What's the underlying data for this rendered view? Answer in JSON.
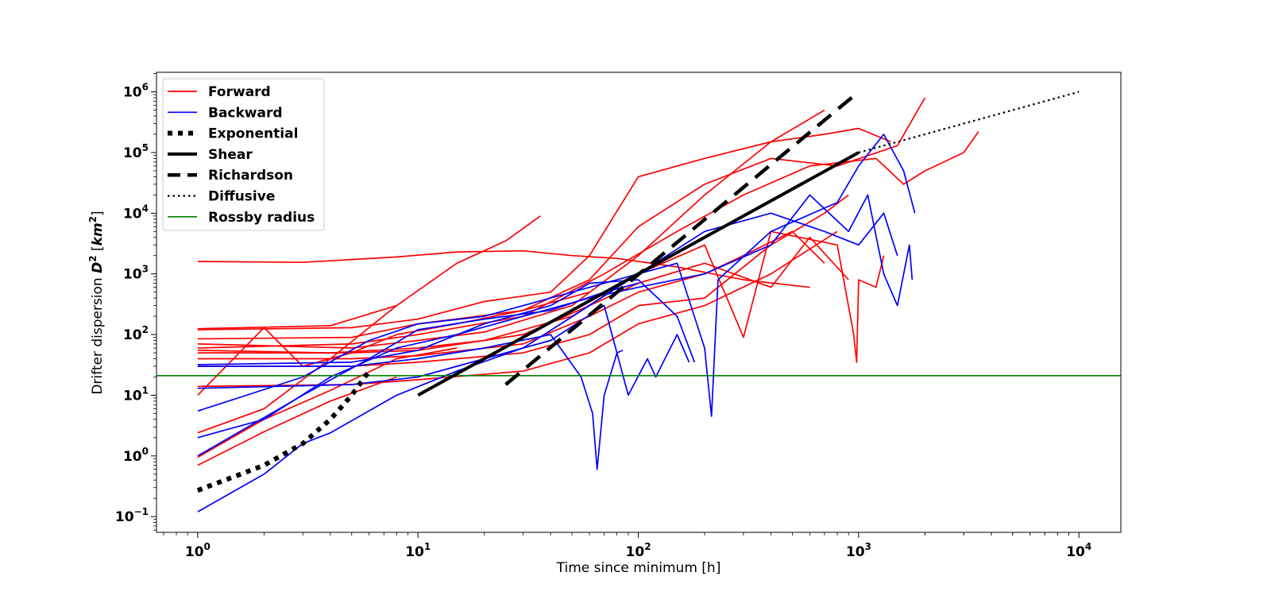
{
  "chart_data": {
    "type": "line",
    "title": "",
    "xlabel": "Time since minimum [h]",
    "ylabel_prefix": "Drifter dispersion ",
    "ylabel_symbol": "D",
    "ylabel_exp": "2",
    "ylabel_unit_open": " [",
    "ylabel_unit": "km",
    "ylabel_unit_exp": "2",
    "ylabel_unit_close": "]",
    "xscale": "log",
    "yscale": "log",
    "xlim": [
      0.65,
      15500
    ],
    "ylim": [
      0.055,
      2100000
    ],
    "grid": false,
    "legend_position": "top-left",
    "x_ticks": [
      {
        "base": "10",
        "exp": "0",
        "value": 1
      },
      {
        "base": "10",
        "exp": "1",
        "value": 10
      },
      {
        "base": "10",
        "exp": "2",
        "value": 100
      },
      {
        "base": "10",
        "exp": "3",
        "value": 1000
      },
      {
        "base": "10",
        "exp": "4",
        "value": 10000
      }
    ],
    "y_ticks": [
      {
        "base": "10",
        "exp": "−1",
        "value": 0.1
      },
      {
        "base": "10",
        "exp": "0",
        "value": 1
      },
      {
        "base": "10",
        "exp": "1",
        "value": 10
      },
      {
        "base": "10",
        "exp": "2",
        "value": 100
      },
      {
        "base": "10",
        "exp": "3",
        "value": 1000
      },
      {
        "base": "10",
        "exp": "4",
        "value": 10000
      },
      {
        "base": "10",
        "exp": "5",
        "value": 100000
      },
      {
        "base": "10",
        "exp": "6",
        "value": 1000000
      }
    ],
    "legend": [
      {
        "label": "Forward",
        "color": "#ff0000",
        "style": "solid-thin"
      },
      {
        "label": "Backward",
        "color": "#0000ff",
        "style": "solid-thin"
      },
      {
        "label": "Exponential",
        "color": "#000000",
        "style": "dotted-thick"
      },
      {
        "label": "Shear",
        "color": "#000000",
        "style": "solid-thick"
      },
      {
        "label": "Richardson",
        "color": "#000000",
        "style": "dashed-thick"
      },
      {
        "label": "Diffusive",
        "color": "#000000",
        "style": "dotted-thin"
      },
      {
        "label": "Rossby radius",
        "color": "#008000",
        "style": "solid-thin"
      }
    ],
    "reference_lines": {
      "exponential": {
        "color": "#000000",
        "points": [
          [
            1,
            0.27
          ],
          [
            2,
            0.7
          ],
          [
            3,
            1.6
          ],
          [
            4,
            4
          ],
          [
            5,
            10
          ],
          [
            6,
            25
          ]
        ]
      },
      "shear": {
        "color": "#000000",
        "points": [
          [
            10,
            10
          ],
          [
            1000,
            100000
          ]
        ]
      },
      "richardson": {
        "color": "#000000",
        "points": [
          [
            25,
            15
          ],
          [
            1000,
            1000000
          ]
        ]
      },
      "diffusive": {
        "color": "#000000",
        "points": [
          [
            1000,
            100000
          ],
          [
            10000,
            1000000
          ]
        ]
      },
      "rossby_radius": {
        "color": "#008000",
        "y": 21
      }
    },
    "series": [
      {
        "group": "Forward",
        "color": "#ff0000",
        "points": [
          [
            1,
            1600
          ],
          [
            3,
            1550
          ],
          [
            8,
            1900
          ],
          [
            15,
            2300
          ],
          [
            30,
            2400
          ],
          [
            50,
            2000
          ],
          [
            80,
            1800
          ],
          [
            150,
            1300
          ],
          [
            300,
            800
          ],
          [
            600,
            600
          ]
        ]
      },
      {
        "group": "Forward",
        "color": "#ff0000",
        "points": [
          [
            1,
            125
          ],
          [
            4,
            140
          ],
          [
            8,
            300
          ],
          [
            15,
            1500
          ],
          [
            25,
            3500
          ],
          [
            36,
            9000
          ]
        ]
      },
      {
        "group": "Forward",
        "color": "#ff0000",
        "points": [
          [
            1,
            120
          ],
          [
            5,
            130
          ],
          [
            10,
            180
          ],
          [
            20,
            350
          ],
          [
            40,
            500
          ],
          [
            60,
            2000
          ],
          [
            100,
            40000
          ],
          [
            200,
            80000
          ],
          [
            400,
            150000
          ],
          [
            700,
            500000
          ]
        ]
      },
      {
        "group": "Forward",
        "color": "#ff0000",
        "points": [
          [
            1,
            85
          ],
          [
            5,
            90
          ],
          [
            10,
            150
          ],
          [
            30,
            250
          ],
          [
            60,
            800
          ],
          [
            100,
            6000
          ],
          [
            200,
            30000
          ],
          [
            400,
            80000
          ],
          [
            800,
            60000
          ],
          [
            1500,
            130000
          ],
          [
            2000,
            800000
          ]
        ]
      },
      {
        "group": "Forward",
        "color": "#ff0000",
        "points": [
          [
            1,
            70
          ],
          [
            5,
            60
          ],
          [
            10,
            80
          ],
          [
            20,
            110
          ],
          [
            50,
            300
          ],
          [
            100,
            2000
          ],
          [
            200,
            20000
          ],
          [
            400,
            150000
          ],
          [
            700,
            200000
          ],
          [
            1000,
            250000
          ],
          [
            1400,
            150000
          ]
        ]
      },
      {
        "group": "Forward",
        "color": "#ff0000",
        "points": [
          [
            1,
            60
          ],
          [
            5,
            70
          ],
          [
            10,
            100
          ],
          [
            30,
            200
          ],
          [
            70,
            1000
          ],
          [
            150,
            5000
          ],
          [
            300,
            20000
          ],
          [
            600,
            60000
          ],
          [
            1200,
            80000
          ],
          [
            1600,
            30000
          ],
          [
            2000,
            50000
          ],
          [
            3000,
            100000
          ],
          [
            3500,
            220000
          ]
        ]
      },
      {
        "group": "Forward",
        "color": "#ff0000",
        "points": [
          [
            1,
            55
          ],
          [
            4,
            50
          ],
          [
            10,
            60
          ],
          [
            20,
            80
          ],
          [
            50,
            200
          ],
          [
            100,
            1000
          ],
          [
            200,
            3000
          ],
          [
            300,
            90
          ],
          [
            400,
            5000
          ],
          [
            800,
            3000
          ],
          [
            950,
            100
          ],
          [
            980,
            35
          ],
          [
            1000,
            800
          ],
          [
            1200,
            600
          ],
          [
            1300,
            2000
          ]
        ]
      },
      {
        "group": "Forward",
        "color": "#ff0000",
        "points": [
          [
            1,
            50
          ],
          [
            5,
            50
          ],
          [
            10,
            55
          ],
          [
            30,
            100
          ],
          [
            60,
            300
          ],
          [
            100,
            700
          ],
          [
            200,
            1500
          ],
          [
            400,
            600
          ],
          [
            600,
            4000
          ],
          [
            900,
            800
          ]
        ]
      },
      {
        "group": "Forward",
        "color": "#ff0000",
        "points": [
          [
            1,
            40
          ],
          [
            5,
            40
          ],
          [
            10,
            45
          ],
          [
            30,
            70
          ],
          [
            60,
            200
          ],
          [
            100,
            500
          ],
          [
            200,
            1000
          ],
          [
            300,
            2000
          ],
          [
            500,
            5000
          ],
          [
            700,
            1500
          ]
        ]
      },
      {
        "group": "Forward",
        "color": "#ff0000",
        "points": [
          [
            1,
            30
          ],
          [
            5,
            30
          ],
          [
            10,
            35
          ],
          [
            30,
            50
          ],
          [
            60,
            100
          ],
          [
            100,
            300
          ],
          [
            200,
            400
          ],
          [
            400,
            3000
          ],
          [
            700,
            10000
          ],
          [
            900,
            20000
          ]
        ]
      },
      {
        "group": "Forward",
        "color": "#ff0000",
        "points": [
          [
            1,
            14
          ],
          [
            5,
            15
          ],
          [
            10,
            18
          ],
          [
            30,
            25
          ],
          [
            60,
            50
          ],
          [
            100,
            150
          ],
          [
            200,
            300
          ],
          [
            400,
            1000
          ],
          [
            800,
            5000
          ]
        ]
      },
      {
        "group": "Forward",
        "color": "#ff0000",
        "points": [
          [
            1,
            10
          ],
          [
            2,
            130
          ],
          [
            3,
            30
          ],
          [
            5,
            50
          ],
          [
            8,
            100
          ],
          [
            15,
            150
          ],
          [
            30,
            250
          ],
          [
            60,
            500
          ]
        ]
      },
      {
        "group": "Forward",
        "color": "#ff0000",
        "points": [
          [
            1,
            2.4
          ],
          [
            2,
            6
          ],
          [
            4,
            40
          ],
          [
            8,
            300
          ]
        ]
      },
      {
        "group": "Forward",
        "color": "#ff0000",
        "points": [
          [
            1,
            0.95
          ],
          [
            2,
            4
          ],
          [
            4,
            12
          ],
          [
            8,
            40
          ],
          [
            15,
            60
          ]
        ]
      },
      {
        "group": "Forward",
        "color": "#ff0000",
        "points": [
          [
            1,
            0.7
          ],
          [
            2,
            2.5
          ],
          [
            4,
            8
          ],
          [
            8,
            20
          ]
        ]
      },
      {
        "group": "Backward",
        "color": "#0000ff",
        "points": [
          [
            1,
            32
          ],
          [
            5,
            35
          ],
          [
            10,
            55
          ],
          [
            20,
            150
          ],
          [
            40,
            300
          ],
          [
            60,
            700
          ],
          [
            100,
            800
          ],
          [
            150,
            200
          ],
          [
            180,
            35
          ]
        ]
      },
      {
        "group": "Backward",
        "color": "#0000ff",
        "points": [
          [
            1,
            30
          ],
          [
            5,
            30
          ],
          [
            10,
            40
          ],
          [
            20,
            60
          ],
          [
            40,
            100
          ],
          [
            55,
            20
          ],
          [
            62,
            5
          ],
          [
            65,
            0.6
          ],
          [
            70,
            10
          ],
          [
            80,
            50
          ],
          [
            85,
            55
          ]
        ]
      },
      {
        "group": "Backward",
        "color": "#0000ff",
        "points": [
          [
            1,
            13
          ],
          [
            5,
            15
          ],
          [
            10,
            20
          ],
          [
            20,
            40
          ],
          [
            40,
            80
          ],
          [
            70,
            300
          ],
          [
            90,
            10
          ],
          [
            110,
            40
          ],
          [
            120,
            20
          ],
          [
            150,
            100
          ],
          [
            170,
            35
          ]
        ]
      },
      {
        "group": "Backward",
        "color": "#0000ff",
        "points": [
          [
            1,
            5.5
          ],
          [
            3,
            20
          ],
          [
            6,
            80
          ],
          [
            10,
            150
          ],
          [
            20,
            200
          ],
          [
            40,
            400
          ],
          [
            80,
            800
          ],
          [
            150,
            1500
          ],
          [
            200,
            60
          ],
          [
            215,
            4.5
          ],
          [
            230,
            800
          ],
          [
            400,
            5000
          ],
          [
            800,
            15000
          ],
          [
            1000,
            60000
          ],
          [
            1300,
            200000
          ],
          [
            1600,
            50000
          ],
          [
            1800,
            10000
          ]
        ]
      },
      {
        "group": "Backward",
        "color": "#0000ff",
        "points": [
          [
            1,
            2
          ],
          [
            2,
            4
          ],
          [
            4,
            20
          ],
          [
            8,
            60
          ],
          [
            15,
            100
          ],
          [
            30,
            200
          ],
          [
            60,
            400
          ],
          [
            100,
            600
          ],
          [
            200,
            1000
          ],
          [
            400,
            3000
          ],
          [
            600,
            20000
          ],
          [
            900,
            5000
          ],
          [
            1100,
            20000
          ],
          [
            1300,
            1000
          ],
          [
            1500,
            300
          ],
          [
            1700,
            3000
          ],
          [
            1750,
            800
          ]
        ]
      },
      {
        "group": "Backward",
        "color": "#0000ff",
        "points": [
          [
            1,
            0.12
          ],
          [
            2,
            0.5
          ],
          [
            3,
            1.6
          ],
          [
            4,
            2.4
          ],
          [
            8,
            10
          ],
          [
            15,
            25
          ],
          [
            30,
            60
          ],
          [
            60,
            300
          ],
          [
            100,
            1000
          ],
          [
            200,
            5000
          ],
          [
            400,
            10000
          ],
          [
            700,
            5000
          ],
          [
            1000,
            3000
          ],
          [
            1300,
            10000
          ],
          [
            1500,
            2000
          ]
        ]
      },
      {
        "group": "Backward",
        "color": "#0000ff",
        "points": [
          [
            1,
            1
          ],
          [
            3,
            10
          ],
          [
            6,
            40
          ],
          [
            10,
            120
          ],
          [
            20,
            180
          ],
          [
            40,
            250
          ],
          [
            70,
            500
          ],
          [
            100,
            700
          ]
        ]
      }
    ]
  }
}
